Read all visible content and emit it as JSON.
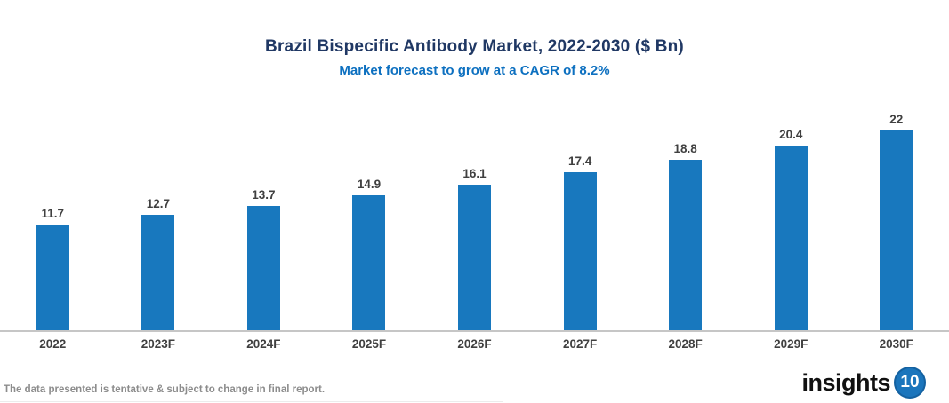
{
  "chart_data": {
    "type": "bar",
    "title": "Brazil Bispecific Antibody Market, 2022-2030 ($ Bn)",
    "subtitle": "Market forecast to grow at a CAGR of 8.2%",
    "categories": [
      "2022",
      "2023F",
      "2024F",
      "2025F",
      "2026F",
      "2027F",
      "2028F",
      "2029F",
      "2030F"
    ],
    "values": [
      11.7,
      12.7,
      13.7,
      14.9,
      16.1,
      17.4,
      18.8,
      20.4,
      22
    ],
    "xlabel": "",
    "ylabel": "",
    "ylim": [
      0,
      24
    ],
    "grid": false,
    "legend": false,
    "value_labels_shown": true
  },
  "footer": {
    "disclaimer": "The data presented is tentative & subject to change in final report.",
    "logo_text": "insights",
    "logo_badge": "10"
  },
  "colors": {
    "title": "#203864",
    "subtitle": "#0D70C0",
    "bar": "#1878BE",
    "label": "#404040",
    "axis": "#C6C6C6",
    "disclaimer": "#8C8C8C",
    "logo_badge_bg": "#1B75BC"
  }
}
